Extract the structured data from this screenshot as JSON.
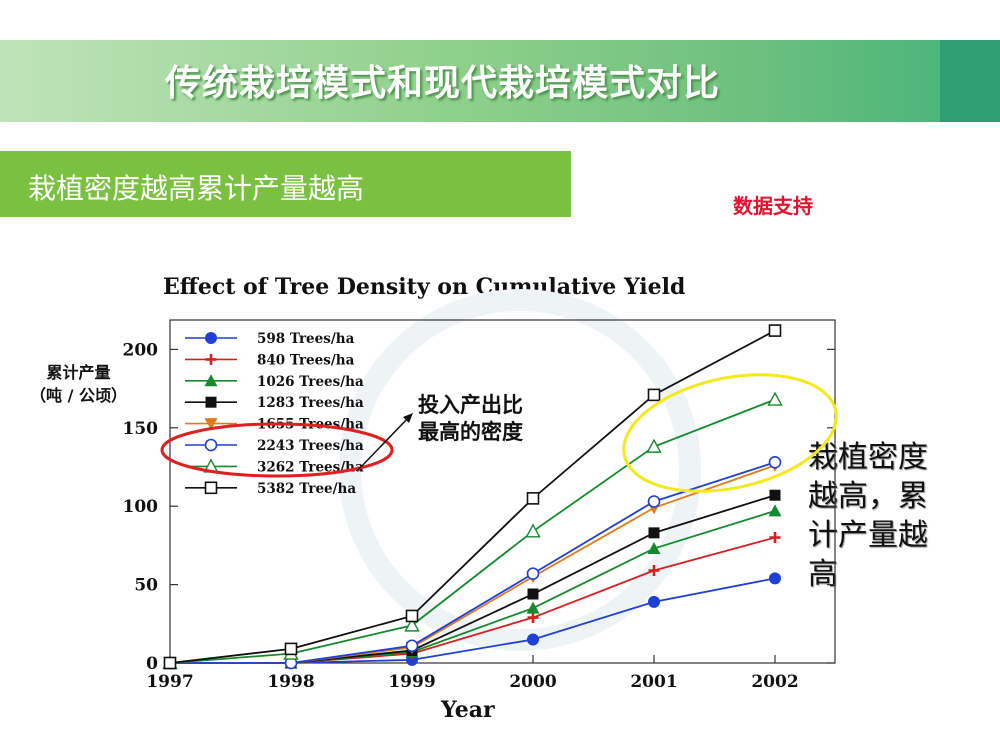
{
  "header": {
    "title": "传统栽培模式和现代栽培模式对比"
  },
  "section": {
    "label": "栽植密度越高累计产量越高",
    "note": "数据支持"
  },
  "chart_data": {
    "type": "line",
    "title": "Effect of Tree Density on Cumulative Yield",
    "xlabel": "Year",
    "ylabel": "累计产量\n（吨 / 公顷）",
    "categories": [
      1997,
      1998,
      1999,
      2000,
      2001,
      2002
    ],
    "ylim": [
      0,
      220
    ],
    "yticks": [
      0,
      50,
      100,
      150,
      200
    ],
    "grid": false,
    "legend_position": "top-left",
    "series": [
      {
        "name": "598 Trees/ha",
        "color": "#1f3fd6",
        "marker": "circle-filled",
        "values": [
          0,
          0,
          2,
          15,
          39,
          54
        ]
      },
      {
        "name": "840 Trees/ha",
        "color": "#d62020",
        "marker": "plus",
        "values": [
          0,
          0,
          6,
          29,
          59,
          80
        ]
      },
      {
        "name": "1026 Trees/ha",
        "color": "#138a2e",
        "marker": "triangle-filled",
        "values": [
          0,
          0,
          7,
          35,
          73,
          97
        ]
      },
      {
        "name": "1283 Trees/ha",
        "color": "#111111",
        "marker": "square-filled",
        "values": [
          0,
          0,
          8,
          44,
          83,
          107
        ]
      },
      {
        "name": "1655 Trees/ha",
        "color": "#e07a1a",
        "marker": "triangle-down",
        "values": [
          0,
          0,
          10,
          55,
          99,
          126
        ]
      },
      {
        "name": "2243 Trees/ha",
        "color": "#1f3fd6",
        "marker": "circle-open",
        "values": [
          0,
          0,
          11,
          57,
          103,
          128
        ]
      },
      {
        "name": "3262 Trees/ha",
        "color": "#138a2e",
        "marker": "triangle-open",
        "values": [
          0,
          6,
          24,
          84,
          138,
          168
        ]
      },
      {
        "name": "5382 Tree/ha",
        "color": "#111111",
        "marker": "square-open",
        "values": [
          0,
          9,
          30,
          105,
          171,
          212
        ]
      }
    ],
    "annotations": [
      {
        "text": "投入产出比\n最高的密度"
      },
      {
        "text": "栽植密度越高，累计产量越高"
      }
    ]
  }
}
